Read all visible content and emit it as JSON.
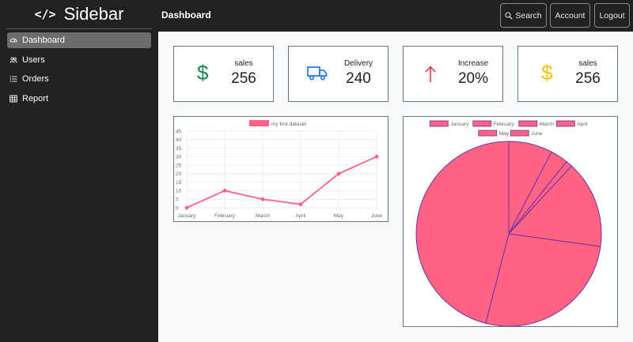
{
  "sidebar": {
    "brand_icon": "</>",
    "brand_title": "Sidebar",
    "items": [
      {
        "label": "Dashboard",
        "icon": "speedometer-icon",
        "active": true
      },
      {
        "label": "Users",
        "icon": "people-icon",
        "active": false
      },
      {
        "label": "Orders",
        "icon": "list-icon",
        "active": false
      },
      {
        "label": "Report",
        "icon": "table-icon",
        "active": false
      }
    ]
  },
  "topbar": {
    "title": "Dashboard",
    "search_label": "Search",
    "account_label": "Account",
    "logout_label": "Logout"
  },
  "cards": [
    {
      "label": "sales",
      "value": "256",
      "icon": "dollar-icon",
      "icon_color": "#198754"
    },
    {
      "label": "Delivery",
      "value": "240",
      "icon": "truck-icon",
      "icon_color": "#0d6efd"
    },
    {
      "label": "Increase",
      "value": "20%",
      "icon": "arrow-up-icon",
      "icon_color": "#dc3545"
    },
    {
      "label": "sales",
      "value": "256",
      "icon": "dollar-icon",
      "icon_color": "#ffc107"
    }
  ],
  "colors": {
    "sidebar_bg": "#212121",
    "line_color": "#ff6384",
    "pie_fill": "#ff6384",
    "pie_border": "#6f2da8"
  },
  "chart_data": [
    {
      "type": "line",
      "legend": [
        "my first dataset"
      ],
      "categories": [
        "January",
        "February",
        "March",
        "April",
        "May",
        "June"
      ],
      "series": [
        {
          "name": "my first dataset",
          "values": [
            0,
            10,
            5,
            2,
            20,
            30
          ]
        }
      ],
      "yticks": [
        "0",
        "5",
        "10",
        "15",
        "20",
        "25",
        "30",
        "35",
        "40",
        "45"
      ],
      "ylim": [
        0,
        45
      ],
      "grid": true
    },
    {
      "type": "pie",
      "legend": [
        "January",
        "February",
        "March",
        "April",
        "May",
        "June"
      ],
      "categories": [
        "January",
        "February",
        "March",
        "April",
        "May",
        "June"
      ],
      "values": [
        10,
        4,
        1.5,
        20,
        35,
        60
      ]
    }
  ]
}
